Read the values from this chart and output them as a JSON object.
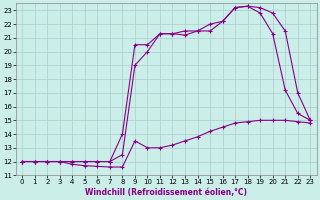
{
  "xlabel": "Windchill (Refroidissement éolien,°C)",
  "background_color": "#cceee8",
  "grid_color": "#aacccc",
  "line_color": "#880088",
  "xlim": [
    -0.5,
    23.5
  ],
  "ylim": [
    11,
    23.5
  ],
  "xticks": [
    0,
    1,
    2,
    3,
    4,
    5,
    6,
    7,
    8,
    9,
    10,
    11,
    12,
    13,
    14,
    15,
    16,
    17,
    18,
    19,
    20,
    21,
    22,
    23
  ],
  "yticks": [
    11,
    12,
    13,
    14,
    15,
    16,
    17,
    18,
    19,
    20,
    21,
    22,
    23
  ],
  "line1_x": [
    0,
    1,
    2,
    3,
    4,
    5,
    6,
    7,
    8,
    9,
    10,
    11,
    12,
    13,
    14,
    15,
    16,
    17,
    18,
    19,
    20,
    21,
    22,
    23
  ],
  "line1_y": [
    12.0,
    12.0,
    12.0,
    12.0,
    11.8,
    11.7,
    11.65,
    11.6,
    11.6,
    13.5,
    13.0,
    13.0,
    13.2,
    13.5,
    13.8,
    14.2,
    14.5,
    14.8,
    14.9,
    15.0,
    15.0,
    15.0,
    14.9,
    14.8
  ],
  "line2_x": [
    0,
    1,
    2,
    3,
    4,
    5,
    6,
    7,
    8,
    9,
    10,
    11,
    12,
    13,
    14,
    15,
    16,
    17,
    18,
    19,
    20,
    21,
    22,
    23
  ],
  "line2_y": [
    12.0,
    12.0,
    12.0,
    12.0,
    12.0,
    12.0,
    12.0,
    12.0,
    12.5,
    19.0,
    20.0,
    21.3,
    21.3,
    21.2,
    21.5,
    21.5,
    22.2,
    23.2,
    23.3,
    22.8,
    21.3,
    17.2,
    15.5,
    15.0
  ],
  "line3_x": [
    0,
    1,
    2,
    3,
    4,
    5,
    6,
    7,
    8,
    9,
    10,
    11,
    12,
    13,
    14,
    15,
    16,
    17,
    18,
    19,
    20,
    21,
    22,
    23
  ],
  "line3_y": [
    12.0,
    12.0,
    12.0,
    12.0,
    12.0,
    12.0,
    12.0,
    12.0,
    14.0,
    20.5,
    20.5,
    21.3,
    21.3,
    21.5,
    21.5,
    22.0,
    22.2,
    23.2,
    23.3,
    23.2,
    22.8,
    21.5,
    17.0,
    15.0
  ],
  "xlabel_fontsize": 5.5,
  "tick_fontsize": 5.0,
  "linewidth": 0.8,
  "markersize": 3.0
}
